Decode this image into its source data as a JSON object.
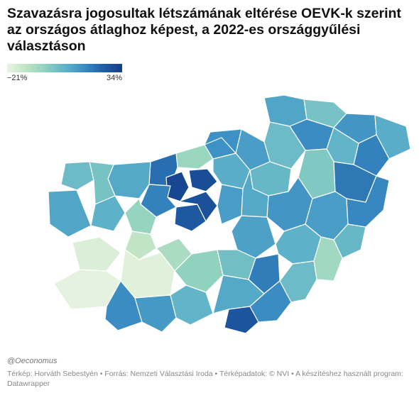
{
  "title": "Szavazásra jogosultak létszámának eltérése OEVK-k szerint az országos átlaghoz képest, a 2022-es országgyűlési választáson",
  "legend": {
    "min_label": "−21%",
    "max_label": "34%",
    "min_color": "#e9f4e2",
    "max_color": "#15408a"
  },
  "credit": "@Oeconomus",
  "source": "Térkép: Horváth Sebestyén • Forrás: Nemzeti Választási Iroda • Térképadatok: © NVI  • A készítéshez használt program: Datawrapper",
  "map_shading": [
    {
      "name": "d1",
      "v": 10
    },
    {
      "name": "d2",
      "v": 2
    },
    {
      "name": "d3",
      "v": 14
    },
    {
      "name": "d4",
      "v": 8
    },
    {
      "name": "d5",
      "v": 16
    },
    {
      "name": "d6",
      "v": 6
    },
    {
      "name": "d7",
      "v": 18
    },
    {
      "name": "d8",
      "v": 4
    },
    {
      "name": "d9",
      "v": 12
    },
    {
      "name": "d10",
      "v": 0
    },
    {
      "name": "d11",
      "v": 20
    },
    {
      "name": "d12",
      "v": 15
    },
    {
      "name": "d13",
      "v": -5
    },
    {
      "name": "d14",
      "v": 5
    },
    {
      "name": "d15",
      "v": 8
    },
    {
      "name": "d16",
      "v": 22
    },
    {
      "name": "d17",
      "v": 9
    },
    {
      "name": "d18",
      "v": 4
    },
    {
      "name": "d19",
      "v": 2
    },
    {
      "name": "d20",
      "v": 32
    },
    {
      "name": "d21",
      "v": 30
    },
    {
      "name": "d22",
      "v": 27
    },
    {
      "name": "d23",
      "v": 29
    },
    {
      "name": "d24",
      "v": 18
    },
    {
      "name": "d25",
      "v": 12
    },
    {
      "name": "d26",
      "v": -4
    },
    {
      "name": "d27",
      "v": 7
    },
    {
      "name": "d28",
      "v": 10
    },
    {
      "name": "d29",
      "v": -12
    },
    {
      "name": "d30",
      "v": -18
    },
    {
      "name": "d31",
      "v": -19
    },
    {
      "name": "d32",
      "v": -8
    },
    {
      "name": "d33",
      "v": -20
    },
    {
      "name": "d34",
      "v": 16
    },
    {
      "name": "d35",
      "v": 13
    },
    {
      "name": "d36",
      "v": -3
    },
    {
      "name": "d37",
      "v": 6
    },
    {
      "name": "d38",
      "v": 11
    },
    {
      "name": "d39",
      "v": 3
    },
    {
      "name": "d40",
      "v": 19
    },
    {
      "name": "d41",
      "v": 9
    },
    {
      "name": "d42",
      "v": 28
    },
    {
      "name": "d43",
      "v": 16
    },
    {
      "name": "d44",
      "v": 14
    },
    {
      "name": "d45",
      "v": 7
    },
    {
      "name": "d46",
      "v": 12
    },
    {
      "name": "d47",
      "v": 5
    },
    {
      "name": "d48",
      "v": 17
    },
    {
      "name": "d49",
      "v": -6
    },
    {
      "name": "d50",
      "v": 4
    },
    {
      "name": "d51",
      "v": 15
    },
    {
      "name": "d52",
      "v": 9
    }
  ]
}
